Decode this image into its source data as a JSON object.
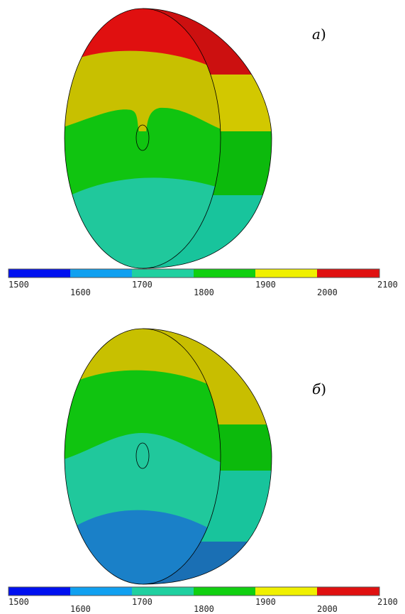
{
  "colors": {
    "blue": "#0010f0",
    "light_blue": "#10a0f0",
    "teal": "#20d0a0",
    "green": "#10d010",
    "yellow": "#f0f000",
    "red": "#e01010",
    "dark_yellow": "#d2c800",
    "dark_green": "#0cba0c",
    "dark_teal": "#18c49c",
    "steel_blue": "#1a78c2",
    "dark_red": "#cc1010"
  },
  "scale_labels": [
    "1500",
    "1600",
    "1700",
    "1800",
    "1900",
    "2000",
    "2100"
  ],
  "panels": [
    {
      "label_main": "а",
      "label_paren": ")",
      "bands": [
        "red",
        "yellow",
        "green",
        "teal"
      ]
    },
    {
      "label_main": "б",
      "label_paren": ")",
      "bands": [
        "yellow",
        "green",
        "teal",
        "steel_blue"
      ]
    }
  ]
}
